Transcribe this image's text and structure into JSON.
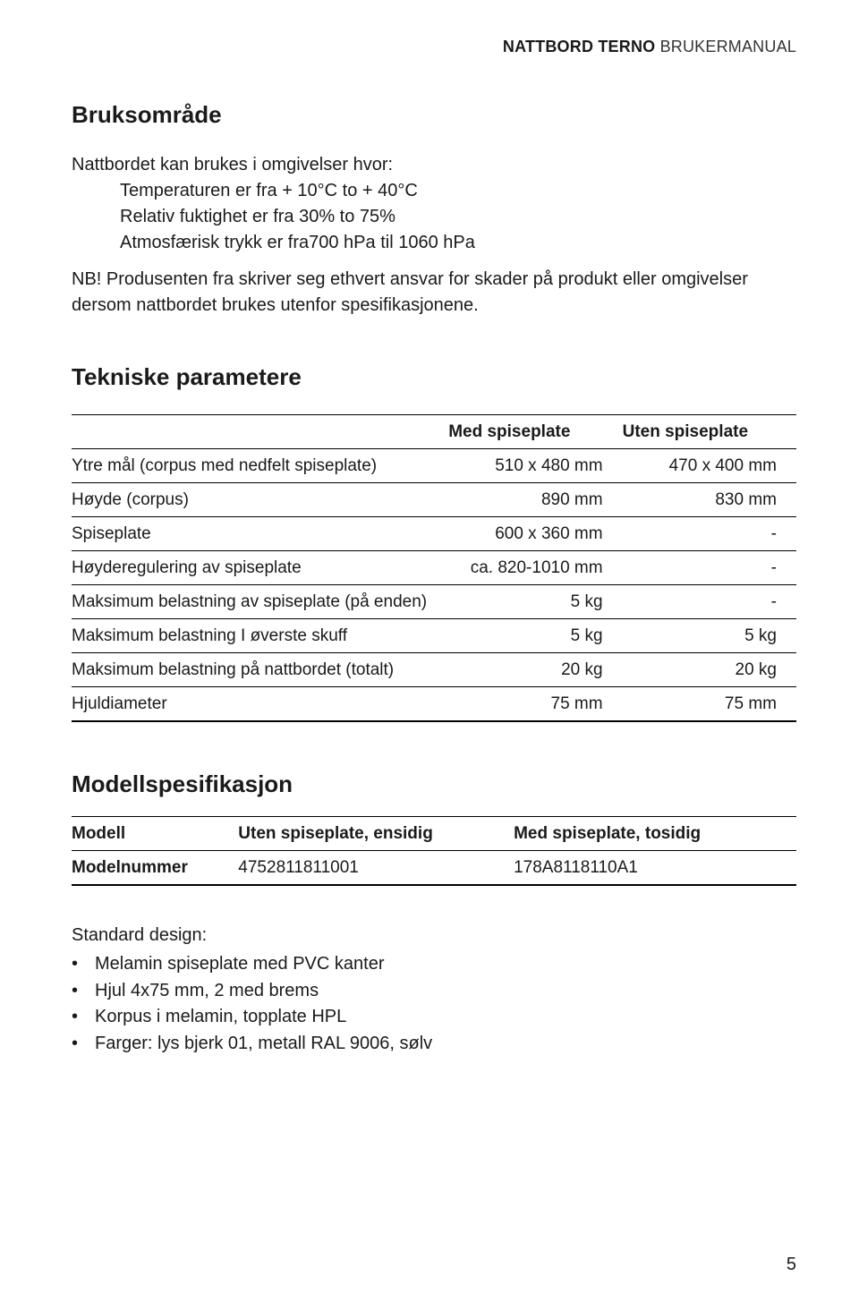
{
  "header": {
    "product": "NATTBORD TERNO",
    "doc": "BRUKERMANUAL"
  },
  "s1": {
    "title": "Bruksområde",
    "intro": "Nattbordet kan brukes i omgivelser hvor:",
    "lines": [
      "Temperaturen er fra + 10°C to + 40°C",
      "Relativ fuktighet er fra 30% to 75%",
      "Atmosfærisk trykk er fra700 hPa til 1060 hPa"
    ],
    "note": "NB! Produsenten fra skriver seg ethvert ansvar for skader på produkt eller omgivelser dersom nattbordet brukes utenfor spesifikasjonene."
  },
  "s2": {
    "title": "Tekniske parametere",
    "head": [
      "",
      "Med spiseplate",
      "Uten spiseplate"
    ],
    "rows": [
      [
        "Ytre mål (corpus med nedfelt spiseplate)",
        "510 x 480 mm",
        "470 x 400 mm"
      ],
      [
        "Høyde (corpus)",
        "890 mm",
        "830 mm"
      ],
      [
        "Spiseplate",
        "600 x 360 mm",
        "-"
      ],
      [
        "Høyderegulering av spiseplate",
        "ca. 820-1010 mm",
        "-"
      ],
      [
        "Maksimum belastning av spiseplate (på enden)",
        "5 kg",
        "-"
      ],
      [
        "Maksimum belastning I øverste skuff",
        "5 kg",
        "5 kg"
      ],
      [
        "Maksimum belastning på nattbordet (totalt)",
        "20 kg",
        "20 kg"
      ],
      [
        "Hjuldiameter",
        "75 mm",
        "75 mm"
      ]
    ]
  },
  "s3": {
    "title": "Modellspesifikasjon",
    "head": [
      "Modell",
      "Uten spiseplate, ensidig",
      "Med spiseplate, tosidig"
    ],
    "rows": [
      [
        "Modelnummer",
        "4752811811001",
        "178A8118110A1"
      ]
    ]
  },
  "s4": {
    "title": "Standard design:",
    "items": [
      "Melamin spiseplate med PVC kanter",
      "Hjul 4x75 mm, 2 med brems",
      "Korpus i melamin, topplate HPL",
      "Farger: lys bjerk 01, metall RAL 9006, sølv"
    ]
  },
  "page": "5"
}
